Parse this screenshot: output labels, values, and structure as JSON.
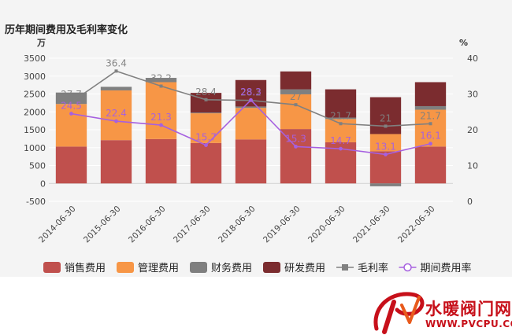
{
  "title": "历年期间费用及毛利率变化",
  "chart_data": {
    "type": "bar",
    "categories": [
      "2014-06-30",
      "2015-06-30",
      "2016-06-30",
      "2017-06-30",
      "2018-06-30",
      "2019-06-30",
      "2020-06-30",
      "2021-06-30",
      "2022-06-30"
    ],
    "left_axis_unit": "万",
    "right_axis_unit": "%",
    "ylim_left": [
      -500,
      3500
    ],
    "yticks_left": [
      -500,
      0,
      500,
      1000,
      1500,
      2000,
      2500,
      3000,
      3500
    ],
    "ylim_right": [
      0,
      40
    ],
    "yticks_right": [
      0,
      10,
      20,
      30,
      40
    ],
    "grid": true,
    "legend_position": "bottom",
    "series": [
      {
        "name": "销售费用",
        "kind": "bar",
        "color": "#c0504d",
        "values": [
          1030,
          1210,
          1240,
          1130,
          1230,
          1520,
          1150,
          900,
          1030
        ]
      },
      {
        "name": "管理费用",
        "kind": "bar",
        "color": "#f79646",
        "values": [
          1190,
          1390,
          1590,
          830,
          880,
          970,
          650,
          480,
          1030
        ]
      },
      {
        "name": "财务费用",
        "kind": "bar",
        "color": "#7f7f7f",
        "values": [
          320,
          100,
          120,
          20,
          40,
          140,
          40,
          -80,
          100
        ]
      },
      {
        "name": "研发费用",
        "kind": "bar",
        "color": "#7b2c2f",
        "values": [
          0,
          0,
          0,
          550,
          740,
          500,
          790,
          1030,
          670
        ]
      },
      {
        "name": "毛利率",
        "kind": "line",
        "axis": "right",
        "color": "#808080",
        "values": [
          27.7,
          36.4,
          32.2,
          28.4,
          28.2,
          27,
          21.7,
          21,
          21.7
        ]
      },
      {
        "name": "期间费用率",
        "kind": "line",
        "axis": "right",
        "color": "#a660e0",
        "values": [
          24.5,
          22.4,
          21.3,
          15.7,
          28.3,
          15.3,
          14.7,
          13.1,
          16.1
        ]
      }
    ]
  },
  "watermark": {
    "name": "水暖阀门网",
    "url": "WWW.PVCPU.COM",
    "logo_letters": "PV"
  }
}
